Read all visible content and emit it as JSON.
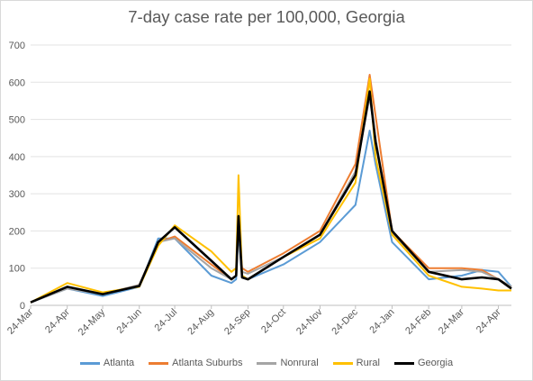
{
  "chart_data": {
    "type": "line",
    "title": "7-day case rate per 100,000, Georgia",
    "xlabel": "",
    "ylabel": "",
    "ylim": [
      0,
      700
    ],
    "yticks": [
      0,
      100,
      200,
      300,
      400,
      500,
      600,
      700
    ],
    "x_tick_labels": [
      "24-Mar",
      "24-Apr",
      "24-May",
      "24-Jun",
      "24-Jul",
      "24-Aug",
      "24-Sep",
      "24-Oct",
      "24-Nov",
      "24-Dec",
      "24-Jan",
      "24-Feb",
      "24-Mar",
      "24-Apr"
    ],
    "grid": "horizontal",
    "legend": "bottom",
    "x": [
      "24-Mar",
      "24-Apr",
      "24-May",
      "24-Jun",
      "10-Jul",
      "24-Jul",
      "24-Aug",
      "10-Sep",
      "14-Sep",
      "16-Sep",
      "19-Sep",
      "24-Sep",
      "24-Oct",
      "24-Nov",
      "24-Dec",
      "5-Jan",
      "10-Jan",
      "24-Jan",
      "24-Feb",
      "24-Mar",
      "10-Apr",
      "24-Apr",
      "5-May"
    ],
    "series": [
      {
        "name": "Atlanta",
        "color": "#5B9BD5",
        "values": [
          8,
          45,
          25,
          50,
          180,
          180,
          80,
          60,
          70,
          200,
          75,
          70,
          110,
          170,
          270,
          470,
          380,
          170,
          70,
          80,
          95,
          90,
          50
        ]
      },
      {
        "name": "Atlanta Suburbs",
        "color": "#ED7D31",
        "values": [
          8,
          50,
          30,
          55,
          170,
          185,
          110,
          70,
          80,
          210,
          100,
          90,
          140,
          200,
          380,
          620,
          510,
          200,
          100,
          100,
          95,
          70,
          50
        ]
      },
      {
        "name": "Nonrural",
        "color": "#A5A5A5",
        "values": [
          8,
          45,
          30,
          55,
          170,
          180,
          100,
          70,
          80,
          210,
          90,
          85,
          130,
          190,
          360,
          560,
          450,
          195,
          90,
          95,
          90,
          70,
          50
        ]
      },
      {
        "name": "Rural",
        "color": "#FFC000",
        "values": [
          8,
          60,
          35,
          50,
          160,
          215,
          145,
          90,
          100,
          350,
          80,
          70,
          130,
          180,
          330,
          610,
          400,
          190,
          80,
          50,
          45,
          40,
          40
        ]
      },
      {
        "name": "Georgia",
        "color": "#000000",
        "values": [
          8,
          50,
          30,
          52,
          170,
          210,
          120,
          70,
          80,
          240,
          75,
          70,
          130,
          190,
          350,
          575,
          440,
          200,
          90,
          70,
          75,
          70,
          45
        ]
      }
    ]
  }
}
